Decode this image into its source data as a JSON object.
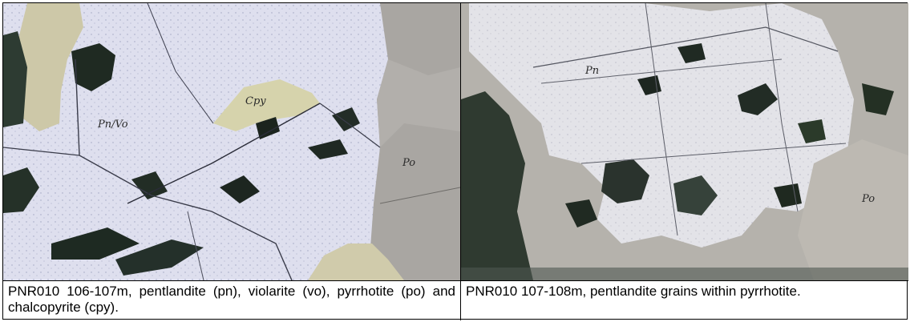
{
  "panels": [
    {
      "caption": "PNR010 106-107m, pentlandite (pn), violarite (vo), pyrrhotite (po) and chalcopyrite (cpy).",
      "labels": [
        "Pn/Vo",
        "Cpy",
        "Po"
      ]
    },
    {
      "caption": "PNR010 107-108m, pentlandite grains within pyrrhotite.",
      "labels": [
        "Pn",
        "Po"
      ]
    }
  ]
}
